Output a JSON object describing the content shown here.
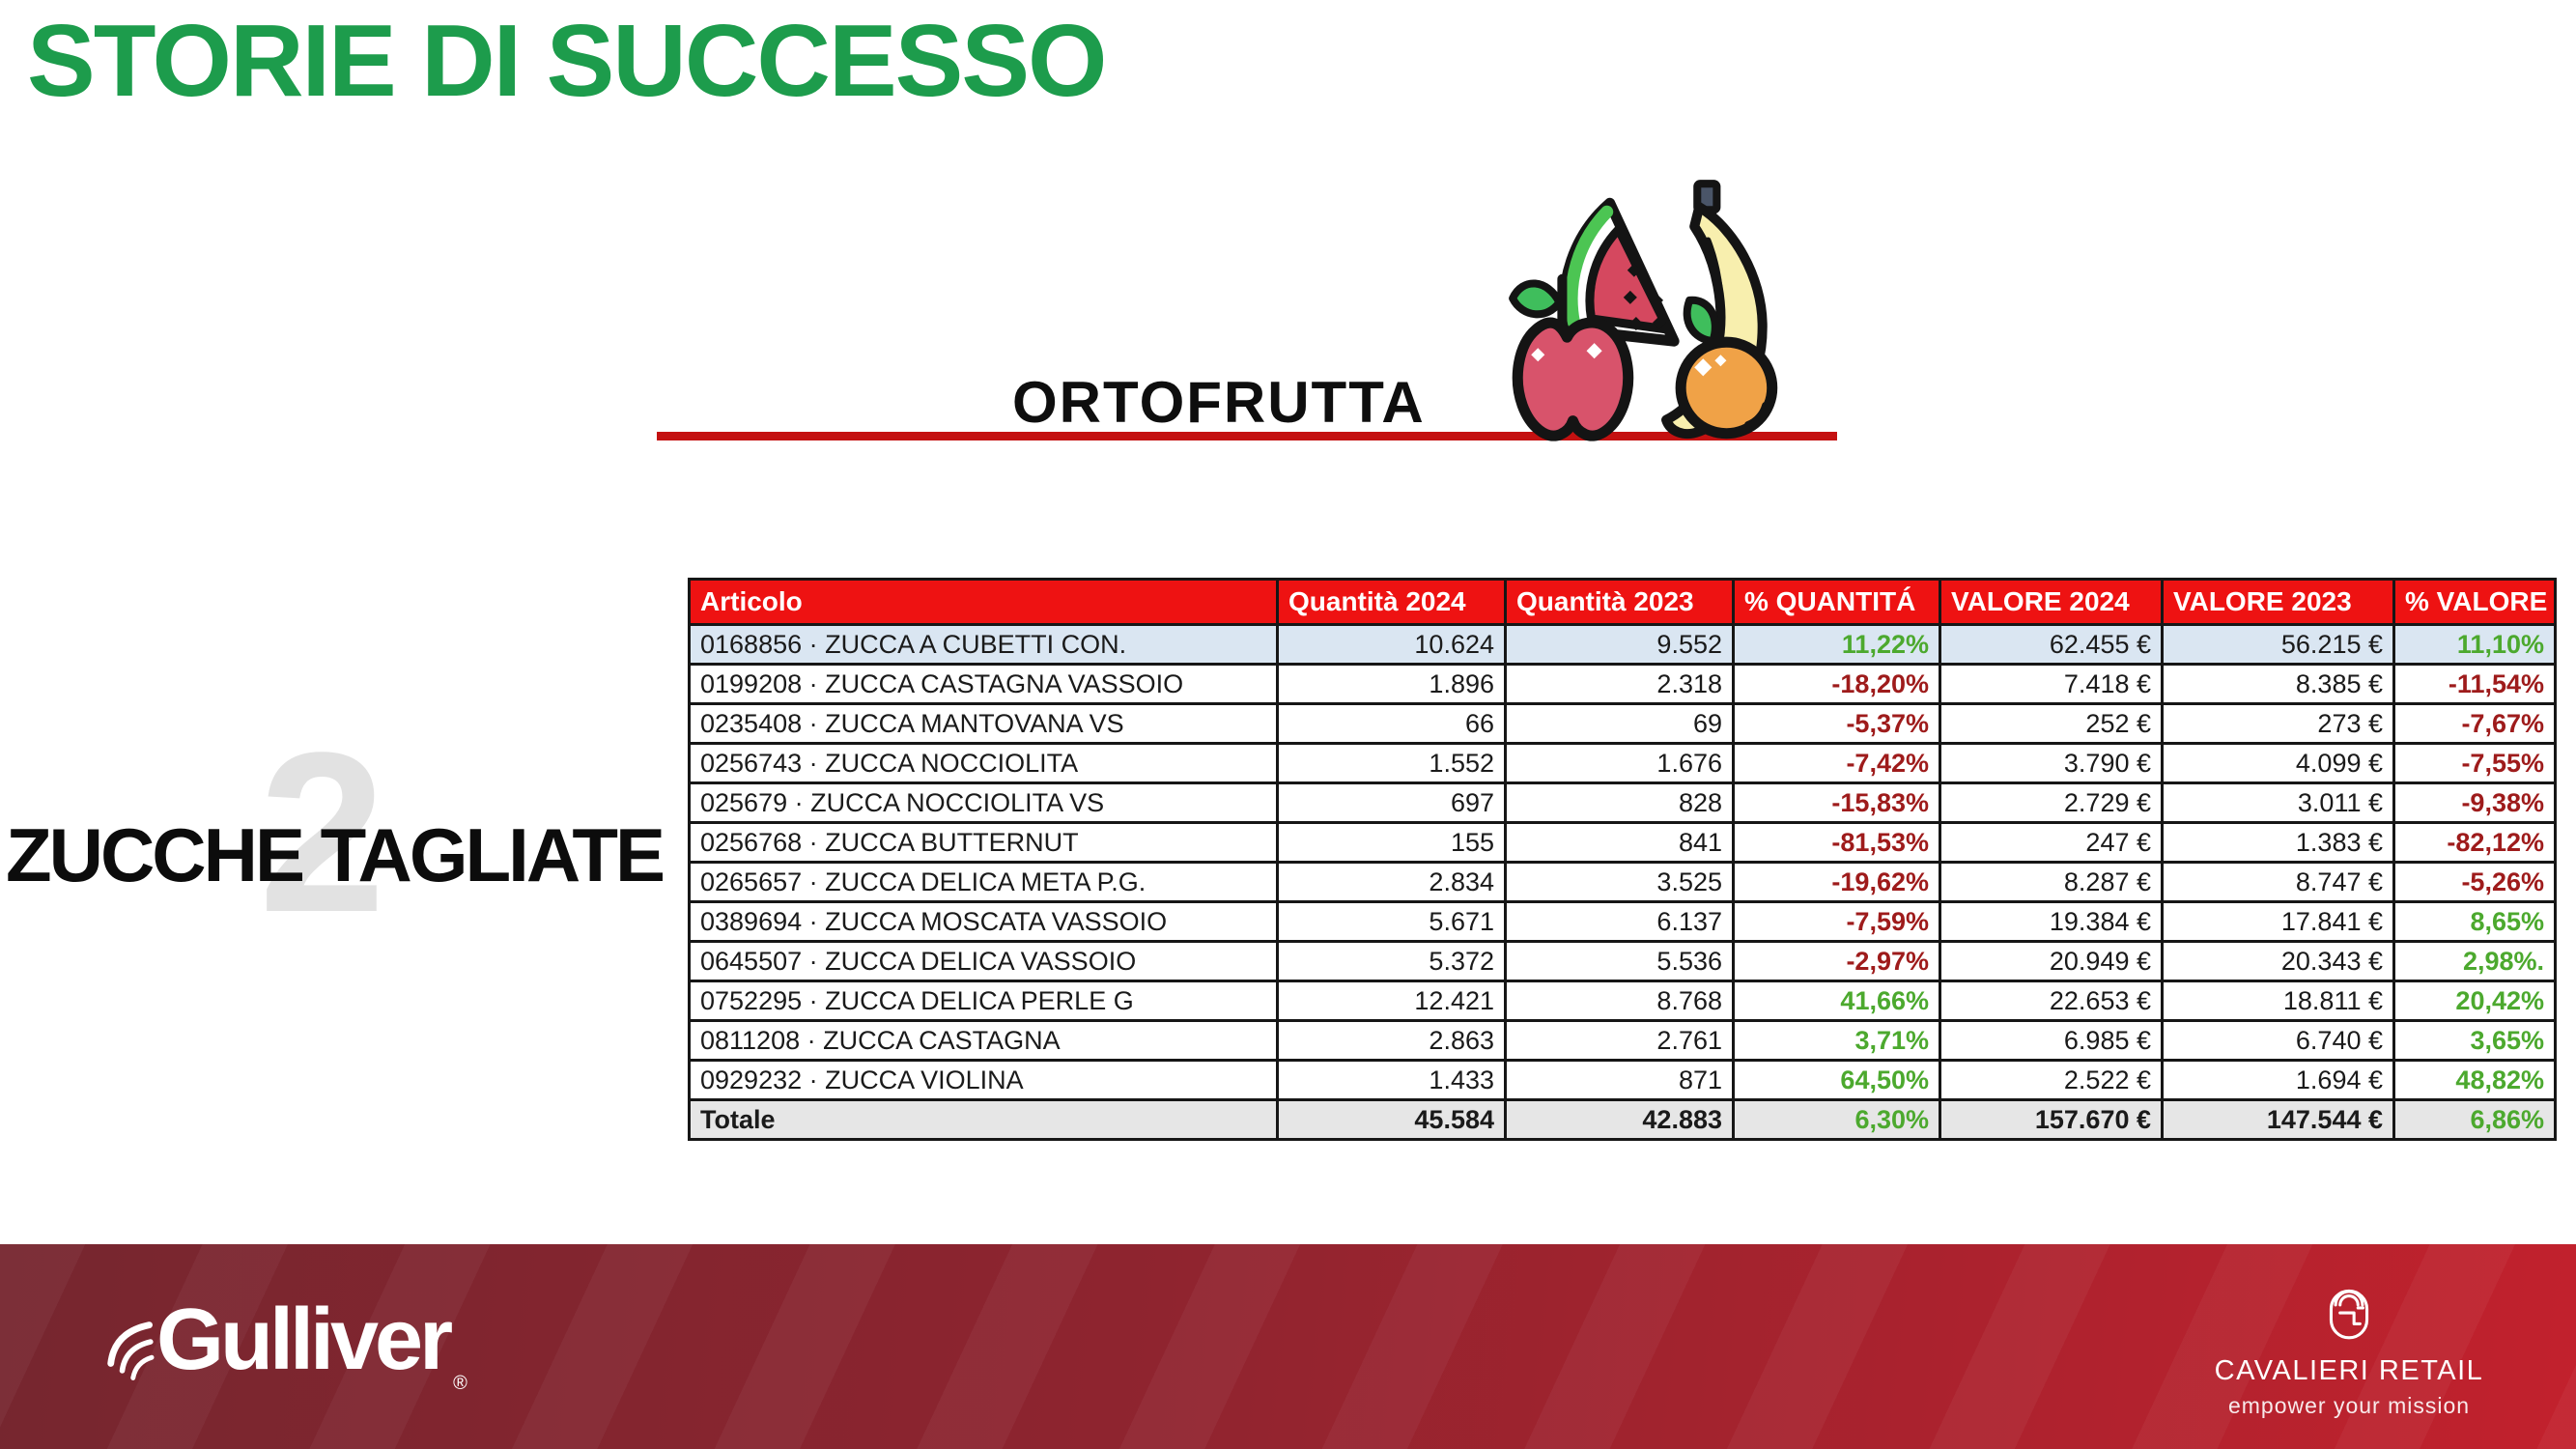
{
  "slide": {
    "title": "STORIE DI SUCCESSO",
    "section": {
      "label": "ORTOFRUTTA"
    },
    "category": {
      "number": "2",
      "label": "ZUCCHE TAGLIATE"
    }
  },
  "table": {
    "columns": [
      "Articolo",
      "Quantità 2024",
      "Quantità 2023",
      "% QUANTITÁ",
      "VALORE 2024",
      "VALORE 2023",
      "% VALORE"
    ],
    "rows": [
      {
        "articolo": "0168856 · ZUCCA A CUBETTI CON.",
        "q2024": "10.624",
        "q2023": "9.552",
        "pq": "11,22%",
        "v2024": "62.455 €",
        "v2023": "56.215 €",
        "pv": "11,10%",
        "highlight": true
      },
      {
        "articolo": "0199208 · ZUCCA CASTAGNA VASSOIO",
        "q2024": "1.896",
        "q2023": "2.318",
        "pq": "-18,20%",
        "v2024": "7.418 €",
        "v2023": "8.385 €",
        "pv": "-11,54%",
        "highlight": false
      },
      {
        "articolo": "0235408 · ZUCCA MANTOVANA VS",
        "q2024": "66",
        "q2023": "69",
        "pq": "-5,37%",
        "v2024": "252 €",
        "v2023": "273 €",
        "pv": "-7,67%",
        "highlight": false
      },
      {
        "articolo": "0256743 · ZUCCA NOCCIOLITA",
        "q2024": "1.552",
        "q2023": "1.676",
        "pq": "-7,42%",
        "v2024": "3.790 €",
        "v2023": "4.099 €",
        "pv": "-7,55%",
        "highlight": false
      },
      {
        "articolo": "025679 · ZUCCA NOCCIOLITA VS",
        "q2024": "697",
        "q2023": "828",
        "pq": "-15,83%",
        "v2024": "2.729 €",
        "v2023": "3.011 €",
        "pv": "-9,38%",
        "highlight": false
      },
      {
        "articolo": "0256768 · ZUCCA BUTTERNUT",
        "q2024": "155",
        "q2023": "841",
        "pq": "-81,53%",
        "v2024": "247 €",
        "v2023": "1.383 €",
        "pv": "-82,12%",
        "highlight": false
      },
      {
        "articolo": "0265657 · ZUCCA DELICA META P.G.",
        "q2024": "2.834",
        "q2023": "3.525",
        "pq": "-19,62%",
        "v2024": "8.287 €",
        "v2023": "8.747 €",
        "pv": "-5,26%",
        "highlight": false
      },
      {
        "articolo": "0389694 · ZUCCA MOSCATA VASSOIO",
        "q2024": "5.671",
        "q2023": "6.137",
        "pq": "-7,59%",
        "v2024": "19.384 €",
        "v2023": "17.841 €",
        "pv": "8,65%",
        "highlight": false
      },
      {
        "articolo": "0645507 · ZUCCA DELICA VASSOIO",
        "q2024": "5.372",
        "q2023": "5.536",
        "pq": "-2,97%",
        "v2024": "20.949 €",
        "v2023": "20.343 €",
        "pv": "2,98%.",
        "highlight": false
      },
      {
        "articolo": "0752295 · ZUCCA DELICA PERLE G",
        "q2024": "12.421",
        "q2023": "8.768",
        "pq": "41,66%",
        "v2024": "22.653 €",
        "v2023": "18.811 €",
        "pv": "20,42%",
        "highlight": false
      },
      {
        "articolo": "0811208 · ZUCCA CASTAGNA",
        "q2024": "2.863",
        "q2023": "2.761",
        "pq": "3,71%",
        "v2024": "6.985 €",
        "v2023": "6.740 €",
        "pv": "3,65%",
        "highlight": false
      },
      {
        "articolo": "0929232 · ZUCCA VIOLINA",
        "q2024": "1.433",
        "q2023": "871",
        "pq": "64,50%",
        "v2024": "2.522 €",
        "v2023": "1.694 €",
        "pv": "48,82%",
        "highlight": false
      }
    ],
    "total": {
      "label": "Totale",
      "q2024": "45.584",
      "q2023": "42.883",
      "pq": "6,30%",
      "v2024": "157.670 €",
      "v2023": "147.544 €",
      "pv": "6,86%"
    }
  },
  "footer": {
    "gulliver_label": "Gulliver",
    "gulliver_reg": "®",
    "cavalieri_label": "CAVALIERI RETAIL",
    "cavalieri_tagline": "empower your mission"
  },
  "colors": {
    "title_green": "#1D9C4C",
    "header_red": "#EE1212",
    "underline_red": "#C41111",
    "row_highlight_blue": "#DAE6F2",
    "total_row_gray": "#E6E6E6",
    "positive_green": "#4CA92E",
    "negative_red": "#9E1B1B",
    "watermark_gray": "#E2E2E2",
    "footer_left": "#76262F",
    "footer_right": "#C2212D"
  }
}
